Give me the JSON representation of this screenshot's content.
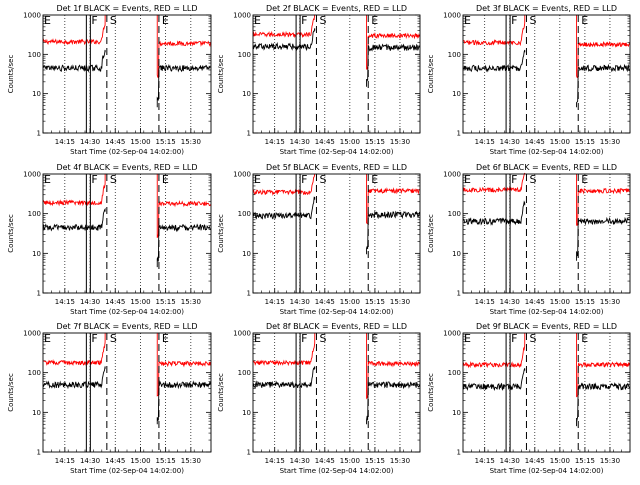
{
  "chart_data": [
    {
      "type": "line",
      "title": "Det 1f BLACK = Events, RED = LLD",
      "xlabel": "Start Time (02-Sep-04 14:02:00)",
      "ylabel": "Counts/sec",
      "xlim": [
        "14:02",
        "15:42"
      ],
      "ylim": [
        1,
        1000
      ],
      "yscale": "log",
      "x_ticks": [
        "14:15",
        "14:30",
        "14:45",
        "15:00",
        "15:15",
        "15:30"
      ],
      "y_ticks": [
        "1",
        "10",
        "100",
        "1000"
      ],
      "markers": [
        {
          "label": "E",
          "x": "14:02"
        },
        {
          "label": "F",
          "x": "14:29"
        },
        {
          "label": "S",
          "x": "14:40"
        },
        {
          "label": "E",
          "x": "15:11"
        }
      ],
      "series": [
        {
          "name": "RED = LLD",
          "color": "#ff0000",
          "pre": 210,
          "post": 190,
          "gap": [
            "14:39",
            "15:10"
          ]
        },
        {
          "name": "BLACK = Events",
          "color": "#000000",
          "pre": 45,
          "post": 45,
          "gap": [
            "14:39",
            "15:10"
          ]
        }
      ]
    },
    {
      "type": "line",
      "title": "Det 2f BLACK = Events, RED = LLD",
      "xlabel": "Start Time (02-Sep-04 14:02:00)",
      "ylabel": "Counts/sec",
      "xlim": [
        "14:02",
        "15:42"
      ],
      "ylim": [
        1,
        1000
      ],
      "yscale": "log",
      "x_ticks": [
        "14:15",
        "14:30",
        "14:45",
        "15:00",
        "15:15",
        "15:30"
      ],
      "y_ticks": [
        "1",
        "10",
        "100",
        "1000"
      ],
      "markers": [
        {
          "label": "E",
          "x": "14:02"
        },
        {
          "label": "F",
          "x": "14:29"
        },
        {
          "label": "S",
          "x": "14:40"
        },
        {
          "label": "E",
          "x": "15:11"
        }
      ],
      "series": [
        {
          "name": "RED = LLD",
          "color": "#ff0000",
          "pre": 320,
          "post": 300,
          "gap": [
            "14:39",
            "15:10"
          ]
        },
        {
          "name": "BLACK = Events",
          "color": "#000000",
          "pre": 160,
          "post": 150,
          "gap": [
            "14:39",
            "15:10"
          ]
        }
      ]
    },
    {
      "type": "line",
      "title": "Det 3f BLACK = Events, RED = LLD",
      "xlabel": "Start Time (02-Sep-04 14:02:00)",
      "ylabel": "Counts/sec",
      "xlim": [
        "14:02",
        "15:42"
      ],
      "ylim": [
        1,
        1000
      ],
      "yscale": "log",
      "x_ticks": [
        "14:15",
        "14:30",
        "14:45",
        "15:00",
        "15:15",
        "15:30"
      ],
      "y_ticks": [
        "1",
        "10",
        "100",
        "1000"
      ],
      "markers": [
        {
          "label": "E",
          "x": "14:02"
        },
        {
          "label": "F",
          "x": "14:29"
        },
        {
          "label": "S",
          "x": "14:40"
        },
        {
          "label": "E",
          "x": "15:11"
        }
      ],
      "series": [
        {
          "name": "RED = LLD",
          "color": "#ff0000",
          "pre": 200,
          "post": 180,
          "gap": [
            "14:39",
            "15:10"
          ]
        },
        {
          "name": "BLACK = Events",
          "color": "#000000",
          "pre": 45,
          "post": 45,
          "gap": [
            "14:39",
            "15:10"
          ]
        }
      ]
    },
    {
      "type": "line",
      "title": "Det 4f BLACK = Events, RED = LLD",
      "xlabel": "Start Time (02-Sep-04 14:02:00)",
      "ylabel": "Counts/sec",
      "xlim": [
        "14:02",
        "15:42"
      ],
      "ylim": [
        1,
        1000
      ],
      "yscale": "log",
      "x_ticks": [
        "14:15",
        "14:30",
        "14:45",
        "15:00",
        "15:15",
        "15:30"
      ],
      "y_ticks": [
        "1",
        "10",
        "100",
        "1000"
      ],
      "markers": [
        {
          "label": "E",
          "x": "14:02"
        },
        {
          "label": "F",
          "x": "14:29"
        },
        {
          "label": "S",
          "x": "14:40"
        },
        {
          "label": "E",
          "x": "15:11"
        }
      ],
      "series": [
        {
          "name": "RED = LLD",
          "color": "#ff0000",
          "pre": 190,
          "post": 180,
          "gap": [
            "14:39",
            "15:10"
          ]
        },
        {
          "name": "BLACK = Events",
          "color": "#000000",
          "pre": 45,
          "post": 45,
          "gap": [
            "14:39",
            "15:10"
          ]
        }
      ]
    },
    {
      "type": "line",
      "title": "Det 5f BLACK = Events, RED = LLD",
      "xlabel": "Start Time (02-Sep-04 14:02:00)",
      "ylabel": "Counts/sec",
      "xlim": [
        "14:02",
        "15:42"
      ],
      "ylim": [
        1,
        1000
      ],
      "yscale": "log",
      "x_ticks": [
        "14:15",
        "14:30",
        "14:45",
        "15:00",
        "15:15",
        "15:30"
      ],
      "y_ticks": [
        "1",
        "10",
        "100",
        "1000"
      ],
      "markers": [
        {
          "label": "E",
          "x": "14:02"
        },
        {
          "label": "F",
          "x": "14:29"
        },
        {
          "label": "S",
          "x": "14:40"
        },
        {
          "label": "E",
          "x": "15:11"
        }
      ],
      "series": [
        {
          "name": "RED = LLD",
          "color": "#ff0000",
          "pre": 350,
          "post": 380,
          "gap": [
            "14:39",
            "15:10"
          ]
        },
        {
          "name": "BLACK = Events",
          "color": "#000000",
          "pre": 90,
          "post": 95,
          "gap": [
            "14:39",
            "15:10"
          ]
        }
      ]
    },
    {
      "type": "line",
      "title": "Det 6f BLACK = Events, RED = LLD",
      "xlabel": "Start Time (02-Sep-04 14:02:00)",
      "ylabel": "Counts/sec",
      "xlim": [
        "14:02",
        "15:42"
      ],
      "ylim": [
        1,
        1000
      ],
      "yscale": "log",
      "x_ticks": [
        "14:15",
        "14:30",
        "14:45",
        "15:00",
        "15:15",
        "15:30"
      ],
      "y_ticks": [
        "1",
        "10",
        "100",
        "1000"
      ],
      "markers": [
        {
          "label": "E",
          "x": "14:02"
        },
        {
          "label": "F",
          "x": "14:29"
        },
        {
          "label": "S",
          "x": "14:40"
        },
        {
          "label": "E",
          "x": "15:11"
        }
      ],
      "series": [
        {
          "name": "RED = LLD",
          "color": "#ff0000",
          "pre": 400,
          "post": 380,
          "gap": [
            "14:39",
            "15:10"
          ]
        },
        {
          "name": "BLACK = Events",
          "color": "#000000",
          "pre": 65,
          "post": 65,
          "gap": [
            "14:39",
            "15:10"
          ]
        }
      ]
    },
    {
      "type": "line",
      "title": "Det 7f BLACK = Events, RED = LLD",
      "xlabel": "Start Time (02-Sep-04 14:02:00)",
      "ylabel": "Counts/sec",
      "xlim": [
        "14:02",
        "15:42"
      ],
      "ylim": [
        1,
        1000
      ],
      "yscale": "log",
      "x_ticks": [
        "14:15",
        "14:30",
        "14:45",
        "15:00",
        "15:15",
        "15:30"
      ],
      "y_ticks": [
        "1",
        "10",
        "100",
        "1000"
      ],
      "markers": [
        {
          "label": "E",
          "x": "14:02"
        },
        {
          "label": "F",
          "x": "14:29"
        },
        {
          "label": "S",
          "x": "14:40"
        },
        {
          "label": "E",
          "x": "15:11"
        }
      ],
      "series": [
        {
          "name": "RED = LLD",
          "color": "#ff0000",
          "pre": 180,
          "post": 170,
          "gap": [
            "14:39",
            "15:10"
          ]
        },
        {
          "name": "BLACK = Events",
          "color": "#000000",
          "pre": 50,
          "post": 50,
          "gap": [
            "14:39",
            "15:10"
          ]
        }
      ]
    },
    {
      "type": "line",
      "title": "Det 8f BLACK = Events, RED = LLD",
      "xlabel": "Start Time (02-Sep-04 14:02:00)",
      "ylabel": "Counts/sec",
      "xlim": [
        "14:02",
        "15:42"
      ],
      "ylim": [
        1,
        1000
      ],
      "yscale": "log",
      "x_ticks": [
        "14:15",
        "14:30",
        "14:45",
        "15:00",
        "15:15",
        "15:30"
      ],
      "y_ticks": [
        "1",
        "10",
        "100",
        "1000"
      ],
      "markers": [
        {
          "label": "E",
          "x": "14:02"
        },
        {
          "label": "F",
          "x": "14:29"
        },
        {
          "label": "S",
          "x": "14:40"
        },
        {
          "label": "E",
          "x": "15:11"
        }
      ],
      "series": [
        {
          "name": "RED = LLD",
          "color": "#ff0000",
          "pre": 180,
          "post": 170,
          "gap": [
            "14:39",
            "15:10"
          ]
        },
        {
          "name": "BLACK = Events",
          "color": "#000000",
          "pre": 50,
          "post": 50,
          "gap": [
            "14:39",
            "15:10"
          ]
        }
      ]
    },
    {
      "type": "line",
      "title": "Det 9f BLACK = Events, RED = LLD",
      "xlabel": "Start Time (02-Sep-04 14:02:00)",
      "ylabel": "Counts/sec",
      "xlim": [
        "14:02",
        "15:42"
      ],
      "ylim": [
        1,
        1000
      ],
      "yscale": "log",
      "x_ticks": [
        "14:15",
        "14:30",
        "14:45",
        "15:00",
        "15:15",
        "15:30"
      ],
      "y_ticks": [
        "1",
        "10",
        "100",
        "1000"
      ],
      "markers": [
        {
          "label": "E",
          "x": "14:02"
        },
        {
          "label": "F",
          "x": "14:29"
        },
        {
          "label": "S",
          "x": "14:40"
        },
        {
          "label": "E",
          "x": "15:11"
        }
      ],
      "series": [
        {
          "name": "RED = LLD",
          "color": "#ff0000",
          "pre": 160,
          "post": 160,
          "gap": [
            "14:39",
            "15:10"
          ]
        },
        {
          "name": "BLACK = Events",
          "color": "#000000",
          "pre": 45,
          "post": 45,
          "gap": [
            "14:39",
            "15:10"
          ]
        }
      ]
    }
  ]
}
